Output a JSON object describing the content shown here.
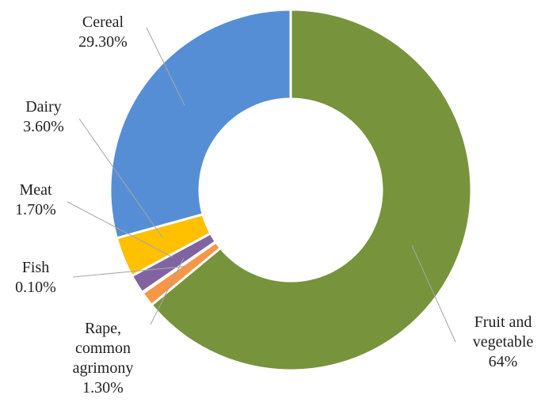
{
  "chart_data": {
    "type": "donut",
    "categories": [
      "Fruit and vegetable",
      "Rape, common agrimony",
      "Fish",
      "Meat",
      "Dairy",
      "Cereal"
    ],
    "values": [
      64,
      1.3,
      0.1,
      1.7,
      3.6,
      29.3
    ],
    "value_labels": [
      "64%",
      "1.30%",
      "0.10%",
      "1.70%",
      "3.60%",
      "29.30%"
    ],
    "colors": [
      "#77933c",
      "#f79646",
      "#c0504d",
      "#8064a2",
      "#ffc000",
      "#558ed5"
    ]
  }
}
